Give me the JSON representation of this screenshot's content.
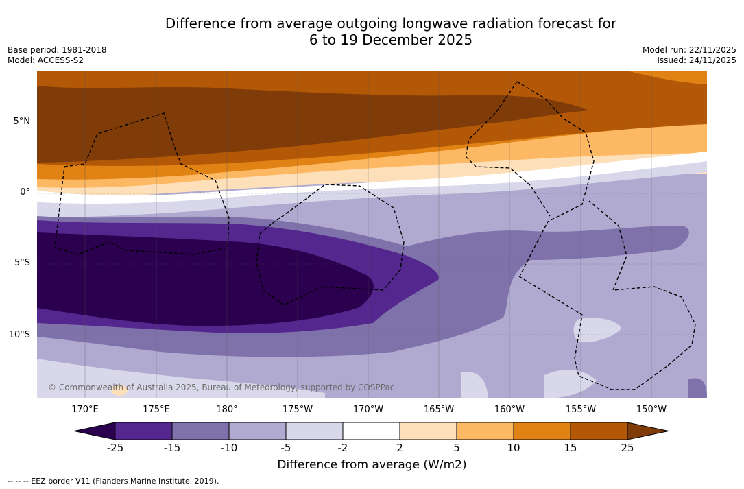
{
  "title": {
    "line1": "Difference from average outgoing longwave radiation forecast for",
    "line2": "6 to 19 December 2025"
  },
  "meta": {
    "base_period": "Base period: 1981-2018",
    "model": "Model: ACCESS-S2",
    "model_run": "Model run: 22/11/2025",
    "issued": "Issued: 24/11/2025"
  },
  "map": {
    "lat_labels": [
      "5°N",
      "0°",
      "5°S",
      "10°S"
    ],
    "lon_labels": [
      "170°E",
      "175°E",
      "180°",
      "175°W",
      "170°W",
      "165°W",
      "160°W",
      "155°W",
      "150°W"
    ],
    "credit": "© Commonwealth of Australia 2025, Bureau of Meteorology, supported by COSPPac"
  },
  "colorbar": {
    "title": "Difference from average (W/m2)",
    "ticks": [
      "-25",
      "-15",
      "-10",
      "-5",
      "-2",
      "2",
      "5",
      "10",
      "15",
      "25"
    ],
    "colors": {
      "lt_minus25": "#2b004e",
      "m25_m15": "#54278f",
      "m15_m10": "#7f72ab",
      "m10_m5": "#b0aad1",
      "m5_m2": "#d8d8ea",
      "m2_p2": "#ffffff",
      "p2_p5": "#fde0b9",
      "p5_p10": "#fdb863",
      "p10_p15": "#e08214",
      "p15_p25": "#b35806",
      "gt_25": "#7f3b08"
    }
  },
  "footnote": "-- -- -- EEZ border V11 (Flanders Marine Institute, 2019)."
}
